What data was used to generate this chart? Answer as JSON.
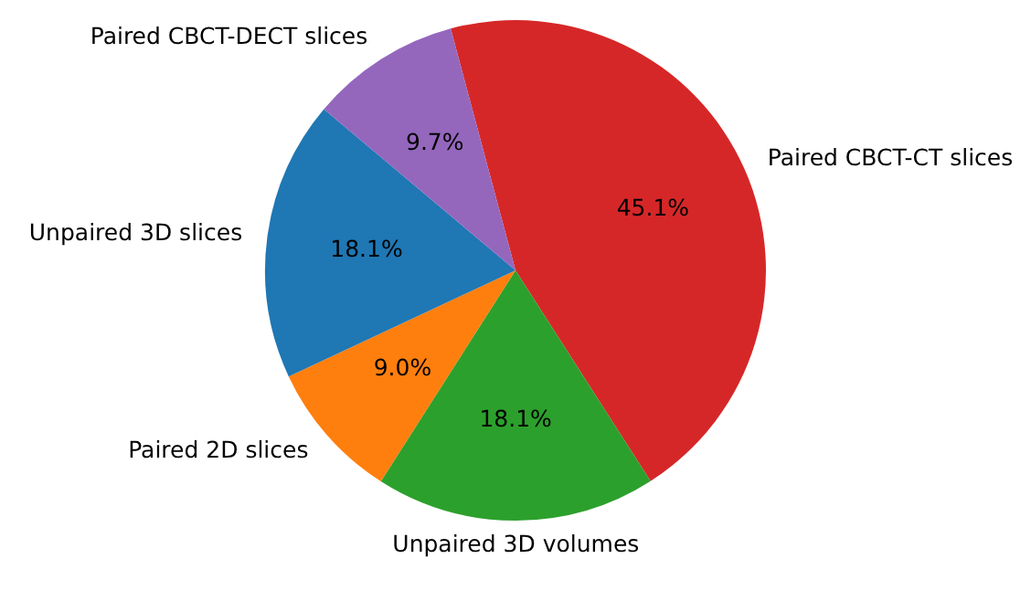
{
  "chart_data": {
    "type": "pie",
    "categories": [
      "Paired CBCT-CT slices",
      "Unpaired 3D volumes",
      "Paired 2D slices",
      "Unpaired 3D slices",
      "Paired CBCT-DECT slices"
    ],
    "values": [
      45.1,
      18.1,
      9.0,
      18.1,
      9.7
    ],
    "colors": [
      "#d62728",
      "#2ca02c",
      "#ff7f0e",
      "#1f77b4",
      "#9467bd"
    ],
    "value_labels": [
      "45.1%",
      "18.1%",
      "9.0%",
      "18.1%",
      "9.7%"
    ],
    "legend": false
  }
}
